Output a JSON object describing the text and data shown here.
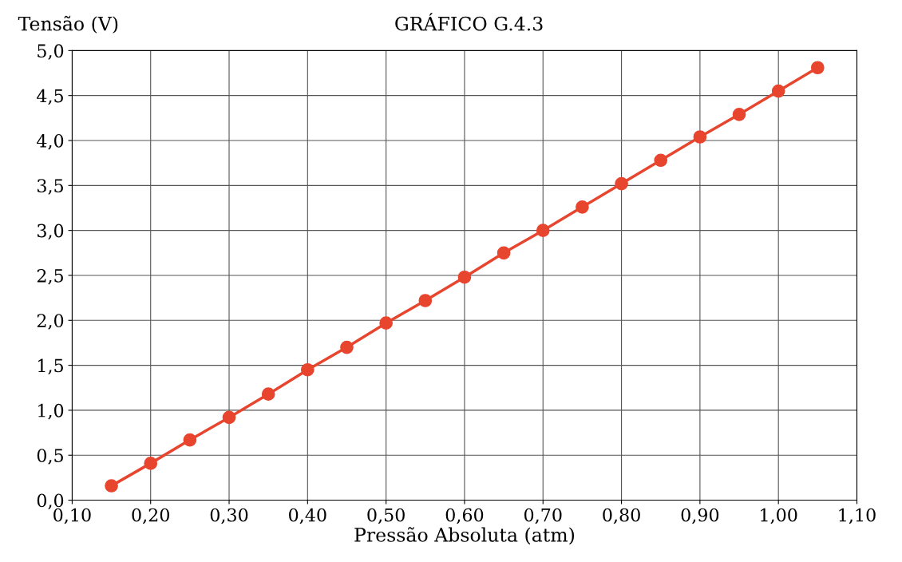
{
  "chart_data": {
    "type": "line",
    "title": "GRÁFICO G.4.3",
    "xlabel": "Pressão Absoluta (atm)",
    "ylabel": "Tensão (V)",
    "x": [
      0.15,
      0.2,
      0.25,
      0.3,
      0.35,
      0.4,
      0.45,
      0.5,
      0.55,
      0.6,
      0.65,
      0.7,
      0.75,
      0.8,
      0.85,
      0.9,
      0.95,
      1.0,
      1.05
    ],
    "series": [
      {
        "color": "#e8452f",
        "values": [
          0.16,
          0.41,
          0.67,
          0.92,
          1.18,
          1.45,
          1.7,
          1.97,
          2.22,
          2.48,
          2.75,
          3.0,
          3.26,
          3.52,
          3.78,
          4.04,
          4.29,
          4.55,
          4.81
        ]
      }
    ],
    "xlim": [
      0.1,
      1.1
    ],
    "xticks": [
      {
        "value": 0.1,
        "label": "0,10"
      },
      {
        "value": 0.2,
        "label": "0,20"
      },
      {
        "value": 0.3,
        "label": "0,30"
      },
      {
        "value": 0.4,
        "label": "0,40"
      },
      {
        "value": 0.5,
        "label": "0,50"
      },
      {
        "value": 0.6,
        "label": "0,60"
      },
      {
        "value": 0.7,
        "label": "0,70"
      },
      {
        "value": 0.8,
        "label": "0,80"
      },
      {
        "value": 0.9,
        "label": "0,90"
      },
      {
        "value": 1.0,
        "label": "1,00"
      },
      {
        "value": 1.1,
        "label": "1,10"
      }
    ],
    "ylim": [
      0,
      5
    ],
    "yticks": [
      {
        "value": 0,
        "label": "0,0"
      },
      {
        "value": 0.5,
        "label": "0,5"
      },
      {
        "value": 1,
        "label": "1,0"
      },
      {
        "value": 1.5,
        "label": "1,5"
      },
      {
        "value": 2,
        "label": "2,0"
      },
      {
        "value": 2.5,
        "label": "2,5"
      },
      {
        "value": 3,
        "label": "3,0"
      },
      {
        "value": 3.5,
        "label": "3,5"
      },
      {
        "value": 4,
        "label": "4,0"
      },
      {
        "value": 4.5,
        "label": "4,5"
      },
      {
        "value": 5,
        "label": "5,0"
      }
    ],
    "grid": true,
    "marker": "circle",
    "line_style": "solid",
    "legend": false
  }
}
